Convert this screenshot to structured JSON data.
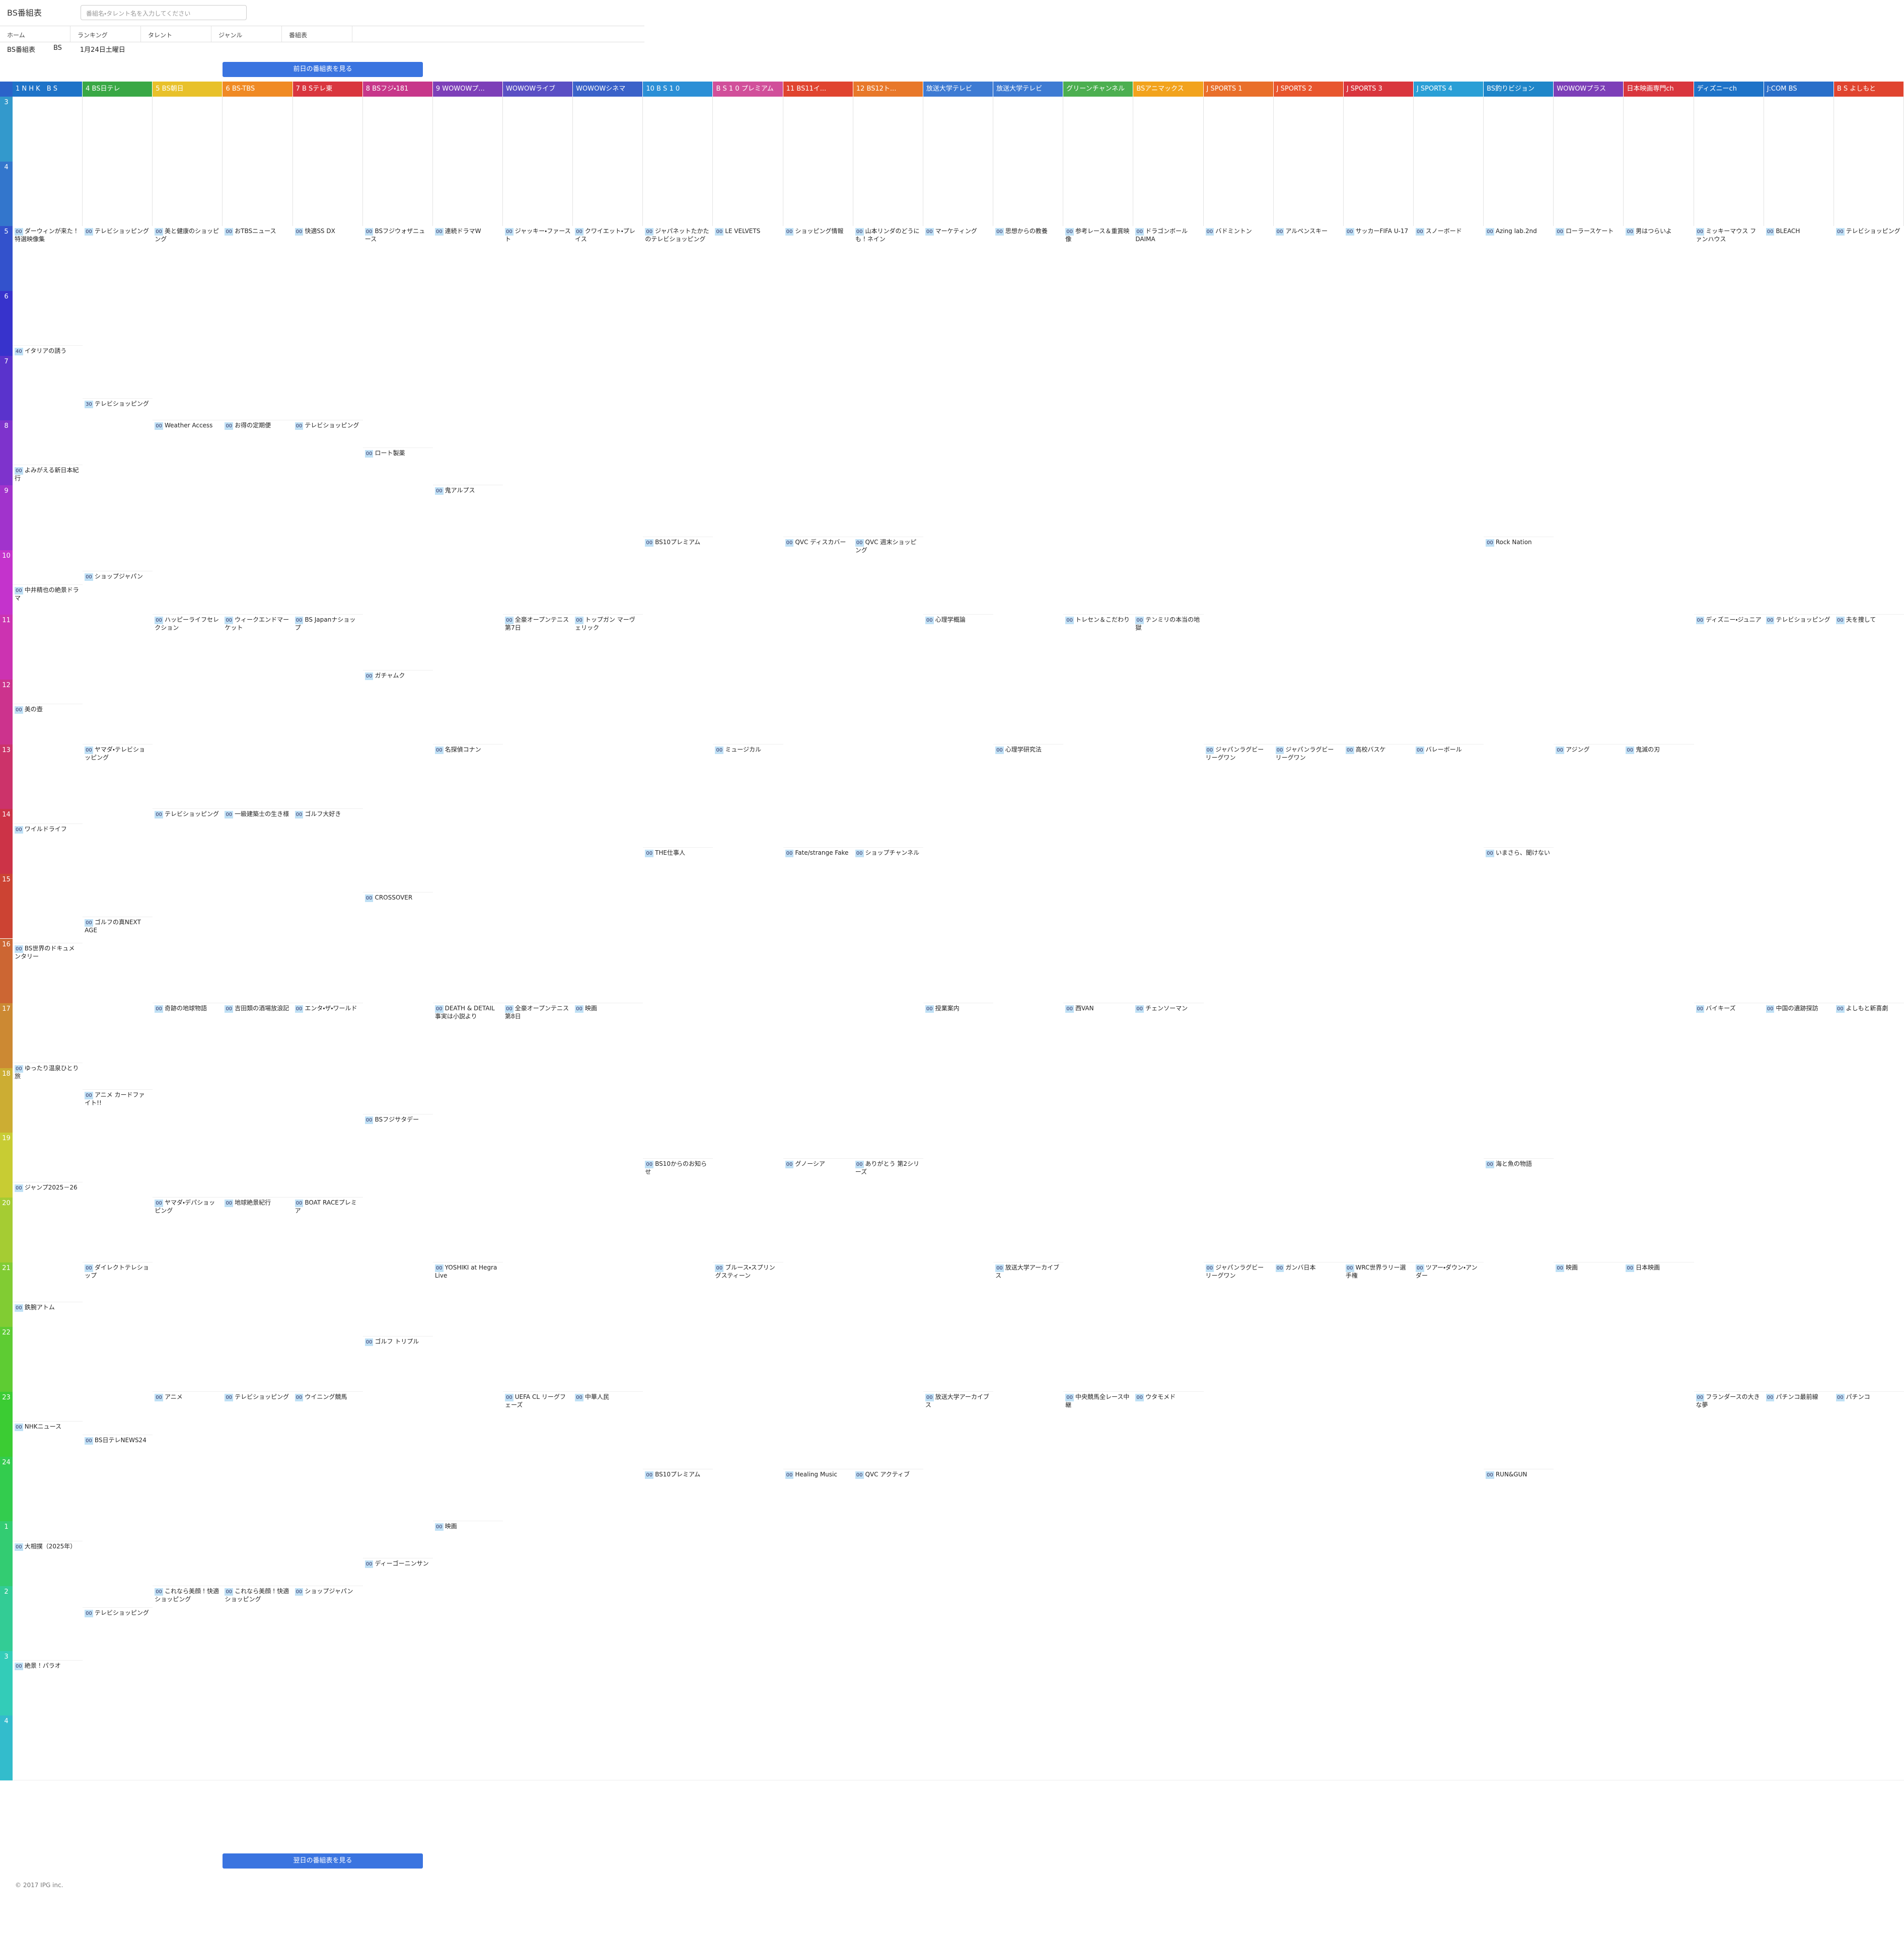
{
  "header": {
    "logo": "BS番組表",
    "search_placeholder": "番組名・タレント名を入力してください"
  },
  "nav": [
    "ホーム",
    "ランキング",
    "タレント",
    "ジャンル",
    "番組表"
  ],
  "selectors": [
    "BS番組表",
    "BS",
    "1月24日土曜日"
  ],
  "prev_button": "前日の番組表を見る",
  "next_button": "翌日の番組表を見る",
  "hours": [
    "3",
    "4",
    "5",
    "6",
    "7",
    "8",
    "9",
    "10",
    "11",
    "12",
    "13",
    "14",
    "15",
    "16",
    "17",
    "18",
    "19",
    "20",
    "21",
    "22",
    "23",
    "24",
    "1",
    "2",
    "3",
    "4"
  ],
  "channels": [
    {
      "name": "1 N H K　B S",
      "color": "#1e73c8",
      "programs": [
        {
          "min": "00",
          "title": "ダーウィンが来た！特選映像集"
        },
        {
          "min": "40",
          "title": "イタリアの誘う"
        },
        {
          "min": "00",
          "title": "よみがえる新日本紀行"
        },
        {
          "min": "00",
          "title": "中井精也の絶景ドラマ"
        },
        {
          "min": "00",
          "title": "美の壺"
        },
        {
          "min": "00",
          "title": "ワイルドライフ"
        },
        {
          "min": "00",
          "title": "BS世界のドキュメンタリー"
        },
        {
          "min": "00",
          "title": "ゆったり温泉ひとり旅"
        },
        {
          "min": "00",
          "title": "ジャンプ2025－26"
        },
        {
          "min": "00",
          "title": "鉄腕アトム"
        },
        {
          "min": "00",
          "title": "NHKニュース"
        },
        {
          "min": "00",
          "title": "大相撲（2025年）"
        },
        {
          "min": "00",
          "title": "絶景！パラオ"
        }
      ]
    },
    {
      "name": "4 BS日テレ",
      "color": "#39a845",
      "programs": [
        {
          "min": "00",
          "title": "テレビショッピング"
        },
        {
          "min": "30",
          "title": "テレビショッピング"
        },
        {
          "min": "00",
          "title": "ショップジャパン"
        },
        {
          "min": "00",
          "title": "ヤマダ・テレビショッピング"
        },
        {
          "min": "00",
          "title": "ゴルフの真NEXT AGE"
        },
        {
          "min": "00",
          "title": "アニメ カードファイト!!"
        },
        {
          "min": "00",
          "title": "ダイレクトテレショップ"
        },
        {
          "min": "00",
          "title": "BS日テレNEWS24"
        },
        {
          "min": "00",
          "title": "テレビショッピング"
        }
      ]
    },
    {
      "name": "5 BS朝日",
      "color": "#e8c12a",
      "programs": [
        {
          "min": "00",
          "title": "美と健康のショッピング"
        },
        {
          "min": "00",
          "title": "Weather Access"
        },
        {
          "min": "00",
          "title": "ハッピーライフセレクション"
        },
        {
          "min": "00",
          "title": "テレビショッピング"
        },
        {
          "min": "00",
          "title": "奇跡の地球物語"
        },
        {
          "min": "00",
          "title": "ヤマダ・デパショッピング"
        },
        {
          "min": "00",
          "title": "アニメ"
        },
        {
          "min": "00",
          "title": "これなら美顔！快適ショッピング"
        }
      ]
    },
    {
      "name": "6 BS-TBS",
      "color": "#f08a24",
      "programs": [
        {
          "min": "00",
          "title": "おTBSニュース"
        },
        {
          "min": "00",
          "title": "お得の定期便"
        },
        {
          "min": "00",
          "title": "ウィークエンドマーケット"
        },
        {
          "min": "00",
          "title": "一級建築士の生き様"
        },
        {
          "min": "00",
          "title": "吉田類の酒場放浪記"
        },
        {
          "min": "00",
          "title": "地球絶景紀行"
        },
        {
          "min": "00",
          "title": "テレビショッピング"
        },
        {
          "min": "00",
          "title": "これなら美顔！快適ショッピング"
        }
      ]
    },
    {
      "name": "7 B Sテレ東",
      "color": "#d9363e",
      "programs": [
        {
          "min": "00",
          "title": "快適SS DX"
        },
        {
          "min": "00",
          "title": "テレビショッピング"
        },
        {
          "min": "00",
          "title": "BS Japanナショップ"
        },
        {
          "min": "00",
          "title": "ゴルフ大好き"
        },
        {
          "min": "00",
          "title": "エンタ・ザ・ワールド"
        },
        {
          "min": "00",
          "title": "BOAT RACEプレミア"
        },
        {
          "min": "00",
          "title": "ウイニング競馬"
        },
        {
          "min": "00",
          "title": "ショップジャパン"
        }
      ]
    },
    {
      "name": "8 BSフジ・181",
      "color": "#c7378a",
      "programs": [
        {
          "min": "00",
          "title": "BSフジウォザニュース"
        },
        {
          "min": "00",
          "title": "ロート製薬"
        },
        {
          "min": "00",
          "title": "ガチャムク"
        },
        {
          "min": "00",
          "title": "CROSSOVER"
        },
        {
          "min": "00",
          "title": "BSフジサタデー"
        },
        {
          "min": "00",
          "title": "ゴルフ トリプル"
        },
        {
          "min": "00",
          "title": "ディーゴーニンサン"
        }
      ]
    },
    {
      "name": "9 WOWOWプ...",
      "color": "#7d3fb8",
      "programs": [
        {
          "min": "00",
          "title": "連続ドラマW"
        },
        {
          "min": "00",
          "title": "鬼アルプス"
        },
        {
          "min": "00",
          "title": "名探偵コナン"
        },
        {
          "min": "00",
          "title": "DEATH & DETAIL 事実は小説より"
        },
        {
          "min": "00",
          "title": "YOSHIKI at Hegra Live"
        },
        {
          "min": "00",
          "title": "映画"
        }
      ]
    },
    {
      "name": "WOWOWライブ",
      "color": "#5a4fc4",
      "programs": [
        {
          "min": "00",
          "title": "ジャッキー・ファースト"
        },
        {
          "min": "00",
          "title": "全豪オープンテニス 第7日"
        },
        {
          "min": "00",
          "title": "全豪オープンテニス 第8日"
        },
        {
          "min": "00",
          "title": "UEFA CL リーグフェーズ"
        }
      ]
    },
    {
      "name": "WOWOWシネマ",
      "color": "#3a62c9",
      "programs": [
        {
          "min": "00",
          "title": "クワイエット・プレイス"
        },
        {
          "min": "00",
          "title": "トップガン マーヴェリック"
        },
        {
          "min": "00",
          "title": "映画"
        },
        {
          "min": "00",
          "title": "中華人民"
        }
      ]
    },
    {
      "name": "10 B S 1 0",
      "color": "#2b8fd6",
      "programs": [
        {
          "min": "00",
          "title": "ジャパネットたかたのテレビショッピング"
        },
        {
          "min": "00",
          "title": "BS10プレミアム"
        },
        {
          "min": "00",
          "title": "THE仕事人"
        },
        {
          "min": "00",
          "title": "BS10からのお知らせ"
        },
        {
          "min": "00",
          "title": "BS10プレミアム"
        }
      ]
    },
    {
      "name": "B S 1 0 プレミアム",
      "color": "#d14f9a",
      "programs": [
        {
          "min": "00",
          "title": "LE VELVETS"
        },
        {
          "min": "00",
          "title": "ミュージカル"
        },
        {
          "min": "00",
          "title": "ブルース・スプリングスティーン"
        }
      ]
    },
    {
      "name": "11 BS11イ...",
      "color": "#e0442f",
      "programs": [
        {
          "min": "00",
          "title": "ショッピング情報"
        },
        {
          "min": "00",
          "title": "QVC ディスカバー"
        },
        {
          "min": "00",
          "title": "Fate/strange Fake"
        },
        {
          "min": "00",
          "title": "グノーシア"
        },
        {
          "min": "00",
          "title": "Healing Music"
        }
      ]
    },
    {
      "name": "12 BS12ト...",
      "color": "#e8782a",
      "programs": [
        {
          "min": "00",
          "title": "山本リンダのどうにも！ネイン"
        },
        {
          "min": "00",
          "title": "QVC 週末ショッピング"
        },
        {
          "min": "00",
          "title": "ショップチャンネル"
        },
        {
          "min": "00",
          "title": "ありがとう 第2シリーズ"
        },
        {
          "min": "00",
          "title": "QVC アクティブ"
        }
      ]
    },
    {
      "name": "放送大学テレビ",
      "color": "#3e7bd3",
      "programs": [
        {
          "min": "00",
          "title": "マーケティング"
        },
        {
          "min": "00",
          "title": "心理学概論"
        },
        {
          "min": "00",
          "title": "授業案内"
        },
        {
          "min": "00",
          "title": "放送大学アーカイブス"
        }
      ]
    },
    {
      "name": "放送大学テレビ",
      "color": "#3e7bd3",
      "programs": [
        {
          "min": "00",
          "title": "思想からの教養"
        },
        {
          "min": "00",
          "title": "心理学研究法"
        },
        {
          "min": "00",
          "title": "放送大学アーカイブス"
        }
      ]
    },
    {
      "name": "グリーンチャンネル",
      "color": "#4caf50",
      "programs": [
        {
          "min": "00",
          "title": "参考レース＆重賞映像"
        },
        {
          "min": "00",
          "title": "トレセン＆こだわり"
        },
        {
          "min": "00",
          "title": "西VAN"
        },
        {
          "min": "00",
          "title": "中央競馬全レース中継"
        }
      ]
    },
    {
      "name": "BSアニマックス",
      "color": "#f2a31d",
      "programs": [
        {
          "min": "00",
          "title": "ドラゴンボール DAIMA"
        },
        {
          "min": "00",
          "title": "テンミリの本当の地獄"
        },
        {
          "min": "00",
          "title": "チェンソーマン"
        },
        {
          "min": "00",
          "title": "ウタモメド"
        }
      ]
    },
    {
      "name": "J SPORTS 1",
      "color": "#e96f2a",
      "programs": [
        {
          "min": "00",
          "title": "バドミントン"
        },
        {
          "min": "00",
          "title": "ジャパンラグビー リーグワン"
        },
        {
          "min": "00",
          "title": "ジャパンラグビー リーグワン"
        }
      ]
    },
    {
      "name": "J SPORTS 2",
      "color": "#e8562e",
      "programs": [
        {
          "min": "00",
          "title": "アルペンスキー"
        },
        {
          "min": "00",
          "title": "ジャパンラグビー リーグワン"
        },
        {
          "min": "00",
          "title": "ガンバ日本"
        }
      ]
    },
    {
      "name": "J SPORTS 3",
      "color": "#d9363e",
      "programs": [
        {
          "min": "00",
          "title": "サッカーFIFA U-17"
        },
        {
          "min": "00",
          "title": "高校バスケ"
        },
        {
          "min": "00",
          "title": "WRC世界ラリー選手権"
        }
      ]
    },
    {
      "name": "J SPORTS 4",
      "color": "#2a9fd6",
      "programs": [
        {
          "min": "00",
          "title": "スノーボード"
        },
        {
          "min": "00",
          "title": "バレーボール"
        },
        {
          "min": "00",
          "title": "ツアー・ダウン・アンダー"
        }
      ]
    },
    {
      "name": "BS釣りビジョン",
      "color": "#1f86c9",
      "programs": [
        {
          "min": "00",
          "title": "Azing lab.2nd"
        },
        {
          "min": "00",
          "title": "Rock Nation"
        },
        {
          "min": "00",
          "title": "いまさら、聞けない"
        },
        {
          "min": "00",
          "title": "海と魚の物語"
        },
        {
          "min": "00",
          "title": "RUN&GUN"
        }
      ]
    },
    {
      "name": "WOWOWプラス",
      "color": "#7d3fb8",
      "programs": [
        {
          "min": "00",
          "title": "ローラースケート"
        },
        {
          "min": "00",
          "title": "アジング"
        },
        {
          "min": "00",
          "title": "映画"
        }
      ]
    },
    {
      "name": "日本映画専門ch",
      "color": "#d9363e",
      "programs": [
        {
          "min": "00",
          "title": "男はつらいよ"
        },
        {
          "min": "00",
          "title": "鬼滅の刃"
        },
        {
          "min": "00",
          "title": "日本映画"
        }
      ]
    },
    {
      "name": "ディズニーch",
      "color": "#1e73c8",
      "programs": [
        {
          "min": "00",
          "title": "ミッキーマウス ファンハウス"
        },
        {
          "min": "00",
          "title": "ディズニー・ジュニア"
        },
        {
          "min": "00",
          "title": "バイキーズ"
        },
        {
          "min": "00",
          "title": "フランダースの大きな夢"
        }
      ]
    },
    {
      "name": "J:COM BS",
      "color": "#2a6fc9",
      "programs": [
        {
          "min": "00",
          "title": "BLEACH"
        },
        {
          "min": "00",
          "title": "テレビショッピング"
        },
        {
          "min": "00",
          "title": "中国の遺跡探訪"
        },
        {
          "min": "00",
          "title": "パチンコ最前線"
        }
      ]
    },
    {
      "name": "B S よしもと",
      "color": "#e0442f",
      "programs": [
        {
          "min": "00",
          "title": "テレビショッピング"
        },
        {
          "min": "00",
          "title": "夫を捜して"
        },
        {
          "min": "00",
          "title": "よしもと新喜劇"
        },
        {
          "min": "00",
          "title": "パチンコ"
        }
      ]
    }
  ],
  "footer": "© 2017 IPG inc."
}
